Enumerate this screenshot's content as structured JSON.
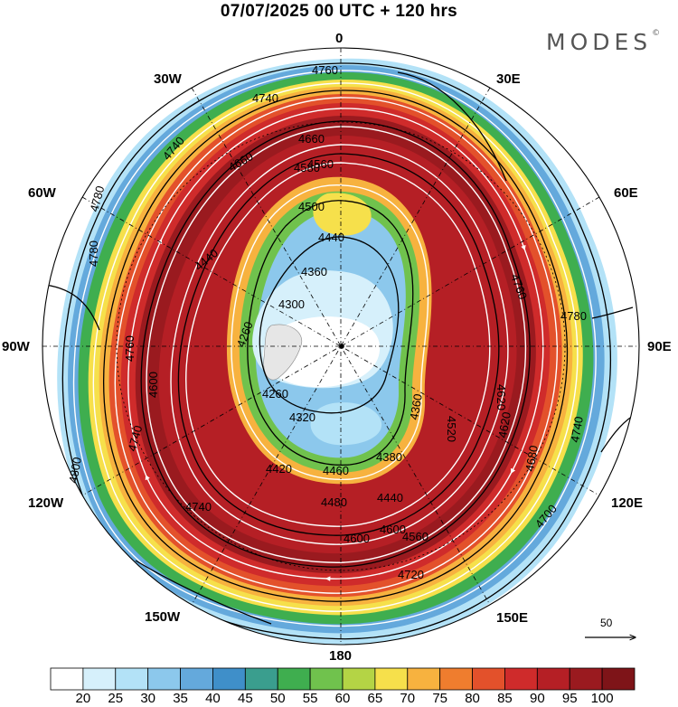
{
  "title": "07/07/2025  00 UTC  + 120 hrs",
  "brand": {
    "name": "MODES",
    "mark": "©"
  },
  "longitude_labels": {
    "n": "0",
    "e30": "30E",
    "e60": "60E",
    "e90": "90E",
    "e120": "120E",
    "e150": "150E",
    "s": "180",
    "w150": "150W",
    "w120": "120W",
    "w90": "90W",
    "w60": "60W",
    "w30": "30W"
  },
  "height_contours": {
    "outer": [
      "4760",
      "4740",
      "4780",
      "4780",
      "4760",
      "4800",
      "4740",
      "4740",
      "4740",
      "4780",
      "4760",
      "4740",
      "4720"
    ],
    "middle": [
      "4660",
      "4660",
      "4580",
      "4600",
      "4600",
      "4620",
      "4620",
      "4680",
      "4700",
      "4600"
    ],
    "inner": [
      "4500",
      "4440",
      "4440",
      "4360",
      "4300",
      "4260",
      "4260",
      "4320",
      "4360",
      "4380",
      "4420",
      "4460",
      "4480",
      "4440",
      "4560",
      "4520",
      "4560"
    ]
  },
  "scale_vector": {
    "label": "50"
  },
  "colorbar": {
    "labels": [
      "20",
      "25",
      "30",
      "35",
      "40",
      "45",
      "50",
      "55",
      "60",
      "65",
      "70",
      "75",
      "80",
      "85",
      "90",
      "95",
      "100"
    ],
    "colors": [
      "#ffffff",
      "#d6f0fb",
      "#b3e2f7",
      "#8cc8ec",
      "#64a9dc",
      "#3f8fc9",
      "#3a9e8e",
      "#3fae4f",
      "#70c24d",
      "#b4d445",
      "#f6e04b",
      "#f7b23f",
      "#ef7d2e",
      "#e3512b",
      "#cf2b2b",
      "#b51f25",
      "#9a1a1f",
      "#7e1418"
    ]
  }
}
